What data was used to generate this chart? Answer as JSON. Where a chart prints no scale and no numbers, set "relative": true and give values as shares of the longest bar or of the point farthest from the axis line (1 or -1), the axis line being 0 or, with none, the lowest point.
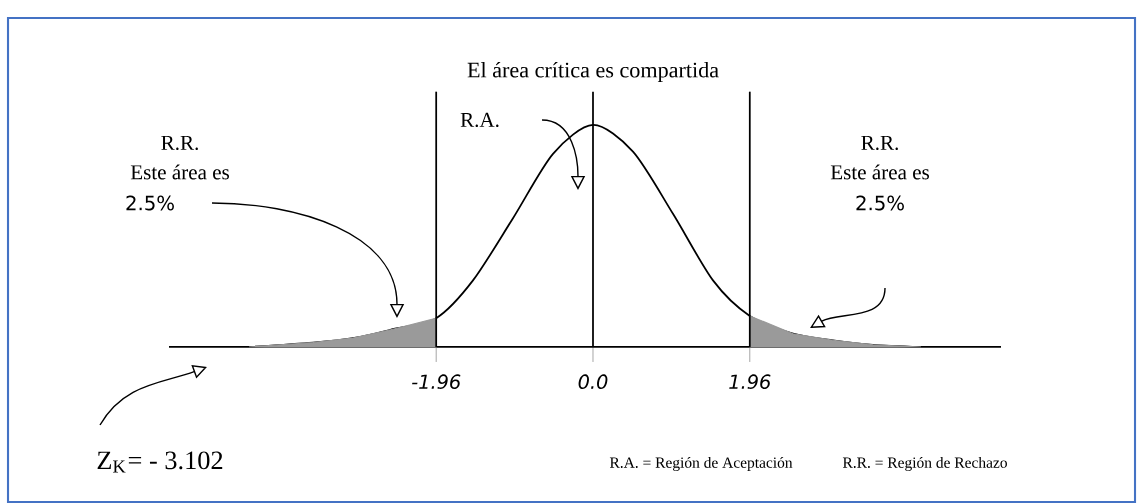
{
  "chart_data": {
    "type": "line",
    "title": "El área crítica es compartida",
    "relative": true,
    "xlim": [
      -5.3,
      5.1
    ],
    "xticks": [
      -1.96,
      {
        "value": 0,
        "label": "0.0"
      },
      1.96
    ],
    "series": [
      {
        "type": "line",
        "color": "#000000",
        "x": [
          -4.3,
          -3.5,
          -3,
          -2.5,
          -1.96,
          -1.5,
          -1,
          -0.5,
          0,
          0.5,
          1,
          1.5,
          1.96,
          2.5,
          3,
          3.5,
          4.1
        ],
        "values": [
          0,
          0.02,
          0.04,
          0.08,
          0.13,
          0.3,
          0.58,
          0.87,
          1,
          0.88,
          0.6,
          0.3,
          0.14,
          0.06,
          0.03,
          0.01,
          0
        ]
      },
      {
        "type": "area",
        "color": "#9a9a9a",
        "x": [
          -4.3,
          -3.5,
          -3,
          -2.5,
          -1.96
        ],
        "values": [
          0,
          0.02,
          0.04,
          0.08,
          0.13
        ]
      },
      {
        "type": "area",
        "color": "#9a9a9a",
        "x": [
          1.96,
          2.5,
          3,
          3.5,
          4.1
        ],
        "values": [
          0.14,
          0.06,
          0.03,
          0.01,
          0
        ]
      }
    ],
    "ref_lines": [
      {
        "axis": "x",
        "value": -1.96
      },
      {
        "axis": "x",
        "value": 0
      },
      {
        "axis": "x",
        "value": 1.96
      }
    ],
    "annotations": [
      "R.A.",
      "R.R.",
      "Este área es",
      "2.5%",
      "R.R.",
      "Este área es",
      "2.5%",
      "Z$_{K}$= - 3.102",
      "R.A. = Región de Aceptación",
      "R.R. = Región de Rechazo"
    ]
  }
}
